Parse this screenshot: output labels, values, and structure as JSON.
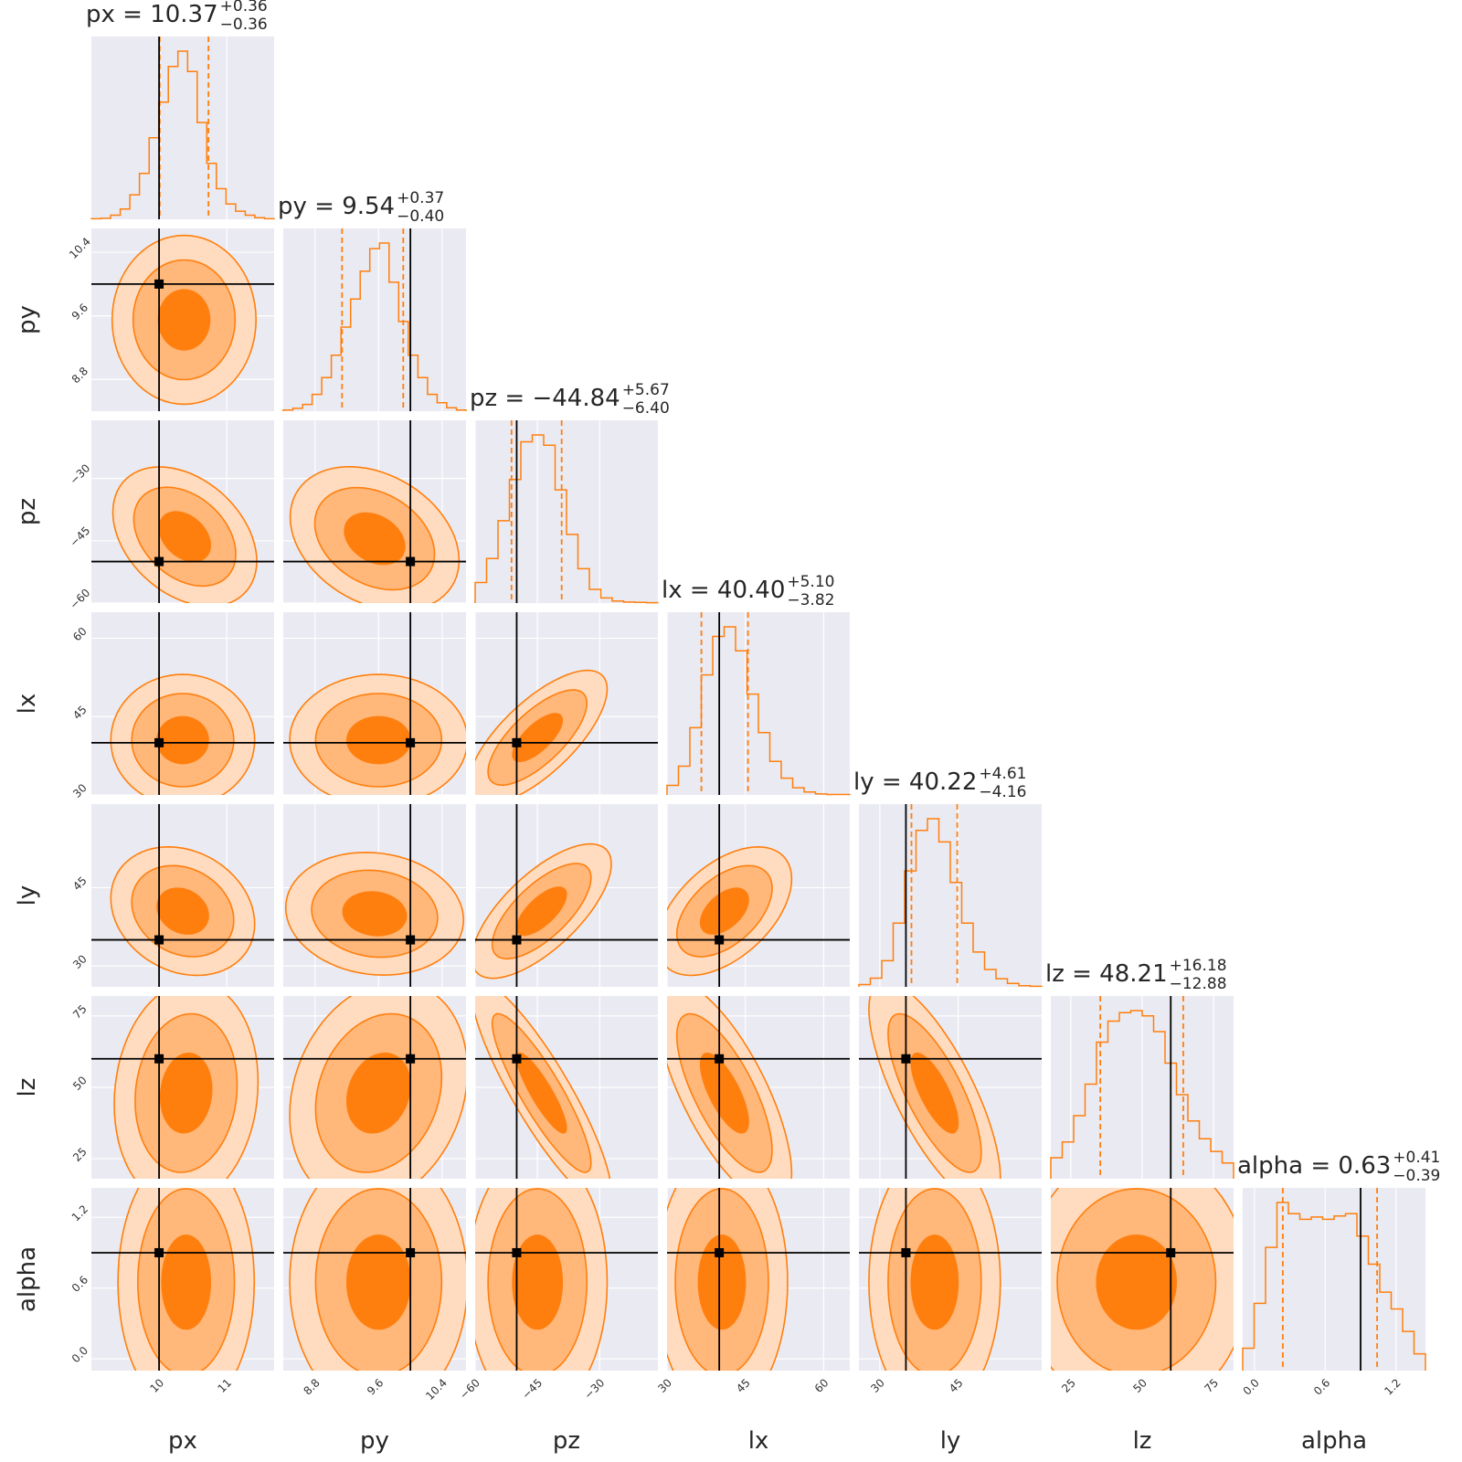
{
  "chart_data": {
    "type": "corner",
    "parameters": [
      {
        "key": "px",
        "label": "px",
        "range": [
          9.0,
          11.7
        ],
        "ticks": [
          10,
          11
        ],
        "tick_labels": [
          "10",
          "11"
        ],
        "truth": 10.0,
        "title": {
          "name": "px",
          "median": "10.37",
          "plus": "+0.36",
          "minus": "−0.36"
        },
        "quantiles": [
          10.01,
          10.73
        ]
      },
      {
        "key": "py",
        "label": "py",
        "range": [
          8.4,
          10.7
        ],
        "ticks": [
          8.8,
          9.6,
          10.4
        ],
        "tick_labels": [
          "8.8",
          "9.6",
          "10.4"
        ],
        "truth": 10.0,
        "title": {
          "name": "py",
          "median": "9.54",
          "plus": "+0.37",
          "minus": "−0.40"
        },
        "quantiles": [
          9.14,
          9.91
        ]
      },
      {
        "key": "pz",
        "label": "pz",
        "range": [
          -60,
          -16
        ],
        "ticks": [
          -60,
          -45,
          -30
        ],
        "tick_labels": [
          "−60",
          "−45",
          "−30"
        ],
        "truth": -50,
        "title": {
          "name": "pz",
          "median": "−44.84",
          "plus": "+5.67",
          "minus": "−6.40"
        },
        "quantiles": [
          -51.24,
          -39.17
        ]
      },
      {
        "key": "lx",
        "label": "lx",
        "range": [
          30,
          65
        ],
        "ticks": [
          30,
          45,
          60
        ],
        "tick_labels": [
          "30",
          "45",
          "60"
        ],
        "truth": 40,
        "title": {
          "name": "lx",
          "median": "40.40",
          "plus": "+5.10",
          "minus": "−3.82"
        },
        "quantiles": [
          36.58,
          45.5
        ]
      },
      {
        "key": "ly",
        "label": "ly",
        "range": [
          26,
          61
        ],
        "ticks": [
          30,
          45
        ],
        "tick_labels": [
          "30",
          "45"
        ],
        "truth": 35,
        "title": {
          "name": "ly",
          "median": "40.22",
          "plus": "+4.61",
          "minus": "−4.16"
        },
        "quantiles": [
          36.06,
          44.83
        ]
      },
      {
        "key": "lz",
        "label": "lz",
        "range": [
          18,
          82
        ],
        "ticks": [
          25,
          50,
          75
        ],
        "tick_labels": [
          "25",
          "50",
          "75"
        ],
        "truth": 60,
        "title": {
          "name": "lz",
          "median": "48.21",
          "plus": "+16.18",
          "minus": "−12.88"
        },
        "quantiles": [
          35.33,
          64.39
        ]
      },
      {
        "key": "alpha",
        "label": "alpha",
        "range": [
          -0.1,
          1.45
        ],
        "ticks": [
          0.0,
          0.6,
          1.2
        ],
        "tick_labels": [
          "0.0",
          "0.6",
          "1.2"
        ],
        "truth": 0.9,
        "title": {
          "name": "alpha",
          "median": "0.63",
          "plus": "+0.41",
          "minus": "−0.39"
        },
        "quantiles": [
          0.24,
          1.04
        ]
      }
    ],
    "histograms": [
      [
        1,
        2,
        8,
        20,
        48,
        90,
        160,
        230,
        300,
        330,
        290,
        190,
        110,
        60,
        30,
        16,
        8,
        3,
        1
      ],
      [
        2,
        5,
        12,
        30,
        60,
        100,
        150,
        200,
        250,
        290,
        300,
        230,
        160,
        100,
        60,
        30,
        15,
        6,
        2
      ],
      [
        60,
        130,
        240,
        360,
        470,
        490,
        460,
        330,
        200,
        100,
        40,
        15,
        6,
        3,
        2,
        1
      ],
      [
        20,
        60,
        140,
        250,
        330,
        350,
        300,
        210,
        130,
        70,
        35,
        15,
        6,
        2,
        1,
        1
      ],
      [
        4,
        15,
        45,
        110,
        200,
        270,
        290,
        250,
        180,
        110,
        60,
        30,
        14,
        6,
        2,
        1
      ],
      [
        20,
        35,
        60,
        90,
        130,
        150,
        158,
        160,
        155,
        140,
        110,
        80,
        55,
        38,
        26,
        15
      ],
      [
        20,
        60,
        110,
        150,
        140,
        135,
        137,
        135,
        138,
        140,
        120,
        95,
        70,
        55,
        35,
        15
      ]
    ],
    "pairs": [
      {
        "x": 0,
        "y": 1,
        "mean": [
          10.37,
          9.55
        ],
        "sd": [
          0.38,
          0.38
        ],
        "rho": 0.0
      },
      {
        "x": 0,
        "y": 2,
        "mean": [
          10.38,
          -44.0
        ],
        "sd": [
          0.38,
          6.0
        ],
        "rho": -0.35
      },
      {
        "x": 1,
        "y": 2,
        "mean": [
          9.55,
          -44.5
        ],
        "sd": [
          0.38,
          6.2
        ],
        "rho": -0.3
      },
      {
        "x": 0,
        "y": 3,
        "mean": [
          10.35,
          40.5
        ],
        "sd": [
          0.38,
          4.5
        ],
        "rho": 0.0
      },
      {
        "x": 1,
        "y": 3,
        "mean": [
          9.6,
          40.5
        ],
        "sd": [
          0.4,
          4.5
        ],
        "rho": 0.0
      },
      {
        "x": 2,
        "y": 3,
        "mean": [
          -45.0,
          41.0
        ],
        "sd": [
          6.0,
          4.6
        ],
        "rho": 0.72
      },
      {
        "x": 0,
        "y": 4,
        "mean": [
          10.35,
          40.5
        ],
        "sd": [
          0.38,
          4.4
        ],
        "rho": -0.2
      },
      {
        "x": 1,
        "y": 4,
        "mean": [
          9.55,
          40.0
        ],
        "sd": [
          0.4,
          4.2
        ],
        "rho": -0.1
      },
      {
        "x": 2,
        "y": 4,
        "mean": [
          -44.0,
          40.5
        ],
        "sd": [
          6.0,
          4.6
        ],
        "rho": 0.7
      },
      {
        "x": 3,
        "y": 4,
        "mean": [
          41.0,
          40.5
        ],
        "sd": [
          4.6,
          4.4
        ],
        "rho": 0.5
      },
      {
        "x": 0,
        "y": 5,
        "mean": [
          10.4,
          48.0
        ],
        "sd": [
          0.38,
          14.0
        ],
        "rho": 0.1
      },
      {
        "x": 1,
        "y": 5,
        "mean": [
          9.6,
          48.0
        ],
        "sd": [
          0.4,
          14.0
        ],
        "rho": 0.2
      },
      {
        "x": 2,
        "y": 5,
        "mean": [
          -44.0,
          48.0
        ],
        "sd": [
          6.0,
          14.0
        ],
        "rho": -0.88
      },
      {
        "x": 3,
        "y": 5,
        "mean": [
          41.0,
          48.0
        ],
        "sd": [
          4.6,
          14.0
        ],
        "rho": -0.72
      },
      {
        "x": 4,
        "y": 5,
        "mean": [
          40.5,
          48.0
        ],
        "sd": [
          4.5,
          14.0
        ],
        "rho": -0.75
      },
      {
        "x": 0,
        "y": 6,
        "mean": [
          10.4,
          0.65
        ],
        "sd": [
          0.36,
          0.4
        ],
        "rho": 0.0
      },
      {
        "x": 1,
        "y": 6,
        "mean": [
          9.6,
          0.65
        ],
        "sd": [
          0.4,
          0.4
        ],
        "rho": 0.0
      },
      {
        "x": 2,
        "y": 6,
        "mean": [
          -45.0,
          0.65
        ],
        "sd": [
          6.0,
          0.4
        ],
        "rho": 0.0
      },
      {
        "x": 3,
        "y": 6,
        "mean": [
          40.5,
          0.65
        ],
        "sd": [
          4.5,
          0.4
        ],
        "rho": 0.0
      },
      {
        "x": 4,
        "y": 6,
        "mean": [
          40.5,
          0.65
        ],
        "sd": [
          4.5,
          0.4
        ],
        "rho": 0.0
      },
      {
        "x": 5,
        "y": 6,
        "mean": [
          48.0,
          0.65
        ],
        "sd": [
          14.0,
          0.4
        ],
        "rho": 0.0
      }
    ],
    "colors": {
      "hist": "#ff7f0e",
      "fill_outer": "#ffdcbf",
      "fill_mid": "#ffb77a",
      "fill_inner": "#ff7f0e",
      "contour": "#ff7f0e",
      "truth": "#000000",
      "panel": "#eaeaf2"
    },
    "grid": true
  }
}
